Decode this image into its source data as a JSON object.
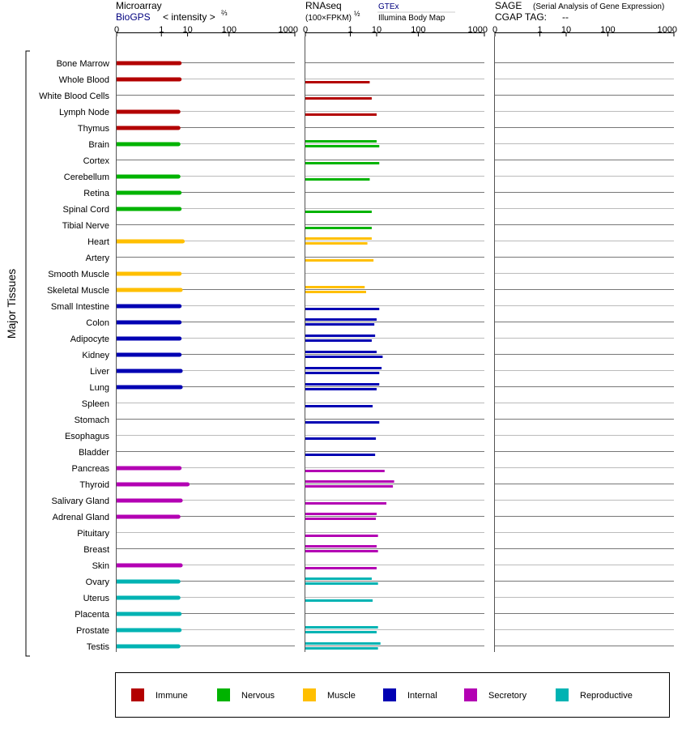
{
  "panels": {
    "microarray": {
      "title": "Microarray",
      "source": "BioGPS",
      "unit_prefix": "< intensity >",
      "unit_exponent": "⅔"
    },
    "rnaseq": {
      "title": "RNAseq",
      "unit_prefix": "(100×FPKM)",
      "unit_exponent": "½",
      "source_gtex": "GTEx",
      "source_illumina": "Illumina Body Map"
    },
    "sage": {
      "title": "SAGE",
      "subtitle": "(Serial Analysis of Gene Expression)",
      "tag_label": "CGAP TAG:",
      "tag_value": "--"
    }
  },
  "axis_ticks": [
    "0",
    "1",
    "10",
    "100",
    "1000"
  ],
  "group_label": "Major Tissues",
  "colors": {
    "Immune": "#b30000",
    "Nervous": "#00b300",
    "Muscle": "#ffbf00",
    "Internal": "#0000b3",
    "Secretory": "#b300b3",
    "Reproductive": "#00b3b3"
  },
  "legend": [
    "Immune",
    "Nervous",
    "Muscle",
    "Internal",
    "Secretory",
    "Reproductive"
  ],
  "chart_data": {
    "type": "bar",
    "orientation": "horizontal",
    "x_scale": "power",
    "x_ticks": [
      0,
      1,
      10,
      100,
      1000
    ],
    "xlim": [
      0,
      1000
    ],
    "tissues": [
      {
        "name": "Bone Marrow",
        "group": "Immune",
        "microarray": 5.5,
        "rnaseq": []
      },
      {
        "name": "Whole Blood",
        "group": "Immune",
        "microarray": 5.5,
        "rnaseq": [
          6
        ]
      },
      {
        "name": "White Blood Cells",
        "group": "Immune",
        "microarray": null,
        "rnaseq": [
          7
        ]
      },
      {
        "name": "Lymph Node",
        "group": "Immune",
        "microarray": 5,
        "rnaseq": [
          10
        ]
      },
      {
        "name": "Thymus",
        "group": "Immune",
        "microarray": 5,
        "rnaseq": []
      },
      {
        "name": "Brain",
        "group": "Nervous",
        "microarray": 5,
        "rnaseq": [
          10,
          12
        ]
      },
      {
        "name": "Cortex",
        "group": "Nervous",
        "microarray": null,
        "rnaseq": [
          12
        ]
      },
      {
        "name": "Cerebellum",
        "group": "Nervous",
        "microarray": 5,
        "rnaseq": [
          6
        ]
      },
      {
        "name": "Retina",
        "group": "Nervous",
        "microarray": 5.5,
        "rnaseq": []
      },
      {
        "name": "Spinal Cord",
        "group": "Nervous",
        "microarray": 5.5,
        "rnaseq": [
          7
        ]
      },
      {
        "name": "Tibial Nerve",
        "group": "Nervous",
        "microarray": null,
        "rnaseq": [
          7
        ]
      },
      {
        "name": "Heart",
        "group": "Muscle",
        "microarray": 7,
        "rnaseq": [
          7,
          5
        ]
      },
      {
        "name": "Artery",
        "group": "Muscle",
        "microarray": null,
        "rnaseq": [
          8
        ]
      },
      {
        "name": "Smooth Muscle",
        "group": "Muscle",
        "microarray": 5.5,
        "rnaseq": []
      },
      {
        "name": "Skeletal Muscle",
        "group": "Muscle",
        "microarray": 6,
        "rnaseq": [
          4,
          4.5
        ]
      },
      {
        "name": "Small Intestine",
        "group": "Internal",
        "microarray": 5.5,
        "rnaseq": [
          12
        ]
      },
      {
        "name": "Colon",
        "group": "Internal",
        "microarray": 5.5,
        "rnaseq": [
          10,
          8.5
        ]
      },
      {
        "name": "Adipocyte",
        "group": "Internal",
        "microarray": 5.5,
        "rnaseq": [
          9,
          7
        ]
      },
      {
        "name": "Kidney",
        "group": "Internal",
        "microarray": 5.5,
        "rnaseq": [
          10,
          15
        ]
      },
      {
        "name": "Liver",
        "group": "Internal",
        "microarray": 6,
        "rnaseq": [
          14,
          12
        ]
      },
      {
        "name": "Lung",
        "group": "Internal",
        "microarray": 6,
        "rnaseq": [
          12,
          10
        ]
      },
      {
        "name": "Spleen",
        "group": "Internal",
        "microarray": null,
        "rnaseq": [
          7.5
        ]
      },
      {
        "name": "Stomach",
        "group": "Internal",
        "microarray": null,
        "rnaseq": [
          12
        ]
      },
      {
        "name": "Esophagus",
        "group": "Internal",
        "microarray": null,
        "rnaseq": [
          9.5
        ]
      },
      {
        "name": "Bladder",
        "group": "Internal",
        "microarray": null,
        "rnaseq": [
          9
        ]
      },
      {
        "name": "Pancreas",
        "group": "Secretory",
        "microarray": 5.5,
        "rnaseq": [
          17
        ]
      },
      {
        "name": "Thyroid",
        "group": "Secretory",
        "microarray": 10,
        "rnaseq": [
          30,
          28
        ]
      },
      {
        "name": "Salivary Gland",
        "group": "Secretory",
        "microarray": 6,
        "rnaseq": [
          19
        ]
      },
      {
        "name": "Adrenal Gland",
        "group": "Secretory",
        "microarray": 5,
        "rnaseq": [
          10,
          9.5
        ]
      },
      {
        "name": "Pituitary",
        "group": "Secretory",
        "microarray": null,
        "rnaseq": [
          11
        ]
      },
      {
        "name": "Breast",
        "group": "Secretory",
        "microarray": null,
        "rnaseq": [
          10,
          11
        ]
      },
      {
        "name": "Skin",
        "group": "Secretory",
        "microarray": 6,
        "rnaseq": [
          10
        ]
      },
      {
        "name": "Ovary",
        "group": "Reproductive",
        "microarray": 5,
        "rnaseq": [
          7,
          11
        ]
      },
      {
        "name": "Uterus",
        "group": "Reproductive",
        "microarray": 5,
        "rnaseq": [
          7.5
        ]
      },
      {
        "name": "Placenta",
        "group": "Reproductive",
        "microarray": 5.5,
        "rnaseq": []
      },
      {
        "name": "Prostate",
        "group": "Reproductive",
        "microarray": 5.5,
        "rnaseq": [
          11,
          10
        ]
      },
      {
        "name": "Testis",
        "group": "Reproductive",
        "microarray": 5,
        "rnaseq": [
          13,
          11
        ]
      }
    ]
  }
}
